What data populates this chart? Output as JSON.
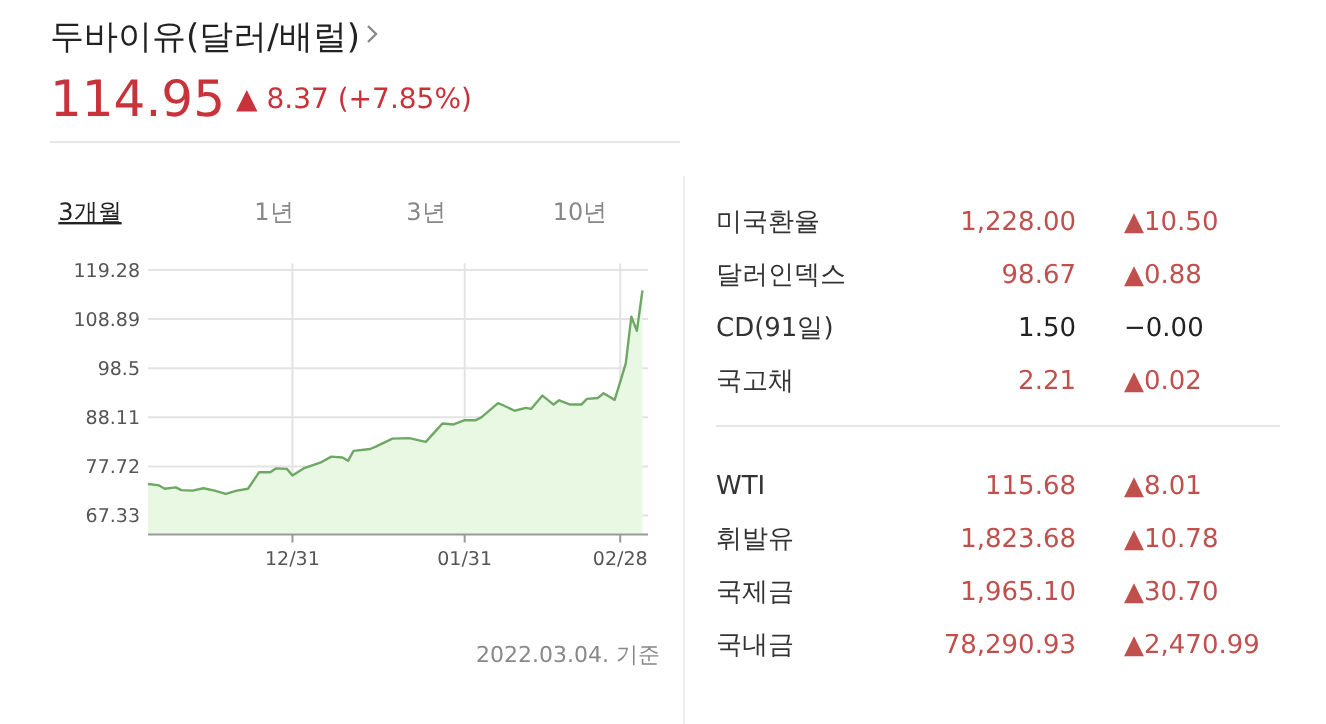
{
  "chart_data": [
    {
      "type": "area",
      "title": "두바이유(달러/배럴)",
      "subtitle": "114.95",
      "annotations": [
        "▲ 8.37 (+7.85%)",
        "3개월",
        "1년",
        "3년",
        "10년",
        "2022.03.04. 기준"
      ],
      "x": [
        "2021-12-05",
        "2021-12-07",
        "2021-12-08",
        "2021-12-10",
        "2021-12-11",
        "2021-12-13",
        "2021-12-15",
        "2021-12-17",
        "2021-12-19",
        "2021-12-21",
        "2021-12-23",
        "2021-12-25",
        "2021-12-27",
        "2021-12-28",
        "2021-12-30",
        "2021-12-31",
        "2022-01-02",
        "2022-01-05",
        "2022-01-07",
        "2022-01-09",
        "2022-01-10",
        "2022-01-11",
        "2022-01-14",
        "2022-01-15",
        "2022-01-18",
        "2022-01-21",
        "2022-01-24",
        "2022-01-26",
        "2022-01-27",
        "2022-01-29",
        "2022-01-31",
        "2022-02-02",
        "2022-02-03",
        "2022-02-06",
        "2022-02-07",
        "2022-02-09",
        "2022-02-11",
        "2022-02-12",
        "2022-02-14",
        "2022-02-16",
        "2022-02-17",
        "2022-02-19",
        "2022-02-21",
        "2022-02-22",
        "2022-02-24",
        "2022-02-25",
        "2022-02-27",
        "2022-02-28",
        "2022-03-01",
        "2022-03-02",
        "2022-03-03",
        "2022-03-04"
      ],
      "series": [
        {
          "color": "#6fa865",
          "values": [
            74.0,
            73.7,
            73.0,
            73.3,
            72.7,
            72.6,
            73.1,
            72.6,
            71.9,
            72.6,
            73.0,
            76.5,
            76.5,
            77.3,
            77.2,
            75.8,
            77.3,
            78.5,
            79.8,
            79.6,
            78.9,
            81.0,
            81.4,
            81.9,
            83.6,
            83.7,
            82.9,
            85.5,
            86.8,
            86.6,
            87.5,
            87.5,
            88.1,
            91.1,
            90.6,
            89.5,
            90.1,
            89.9,
            92.7,
            90.8,
            91.7,
            90.8,
            90.8,
            92.0,
            92.2,
            93.2,
            91.8,
            95.6,
            99.5,
            109.4,
            106.4,
            114.95
          ]
        }
      ],
      "xlim": [
        "2021-12-05",
        "2022-03-05"
      ],
      "xticks": [
        {
          "value": "2021-12-31",
          "label": "12/31"
        },
        {
          "value": "2022-01-31",
          "label": "01/31"
        },
        {
          "value": "2022-02-28",
          "label": "02/28"
        }
      ],
      "ylim": [
        63.3,
        120.7
      ],
      "yticks": [
        67.33,
        77.72,
        88.11,
        98.5,
        108.89,
        119.28
      ],
      "grid": true
    },
    {
      "type": "other",
      "annotations": [
        "미국환율",
        "1,228.00",
        "▲10.50",
        "달러인덱스",
        "98.67",
        "▲0.88",
        "CD(91일)",
        "1.50",
        "−0.00",
        "국고채",
        "2.21",
        "▲0.02",
        "WTI",
        "115.68",
        "▲8.01",
        "휘발유",
        "1,823.68",
        "▲10.78",
        "국제금",
        "1,965.10",
        "▲30.70",
        "국내금",
        "78,290.93",
        "▲2,470.99"
      ],
      "colors": [
        "#c0504d",
        "#c0504d",
        "#222222",
        "#c0504d",
        "#c0504d",
        "#c0504d",
        "#c0504d",
        "#c0504d"
      ]
    }
  ]
}
